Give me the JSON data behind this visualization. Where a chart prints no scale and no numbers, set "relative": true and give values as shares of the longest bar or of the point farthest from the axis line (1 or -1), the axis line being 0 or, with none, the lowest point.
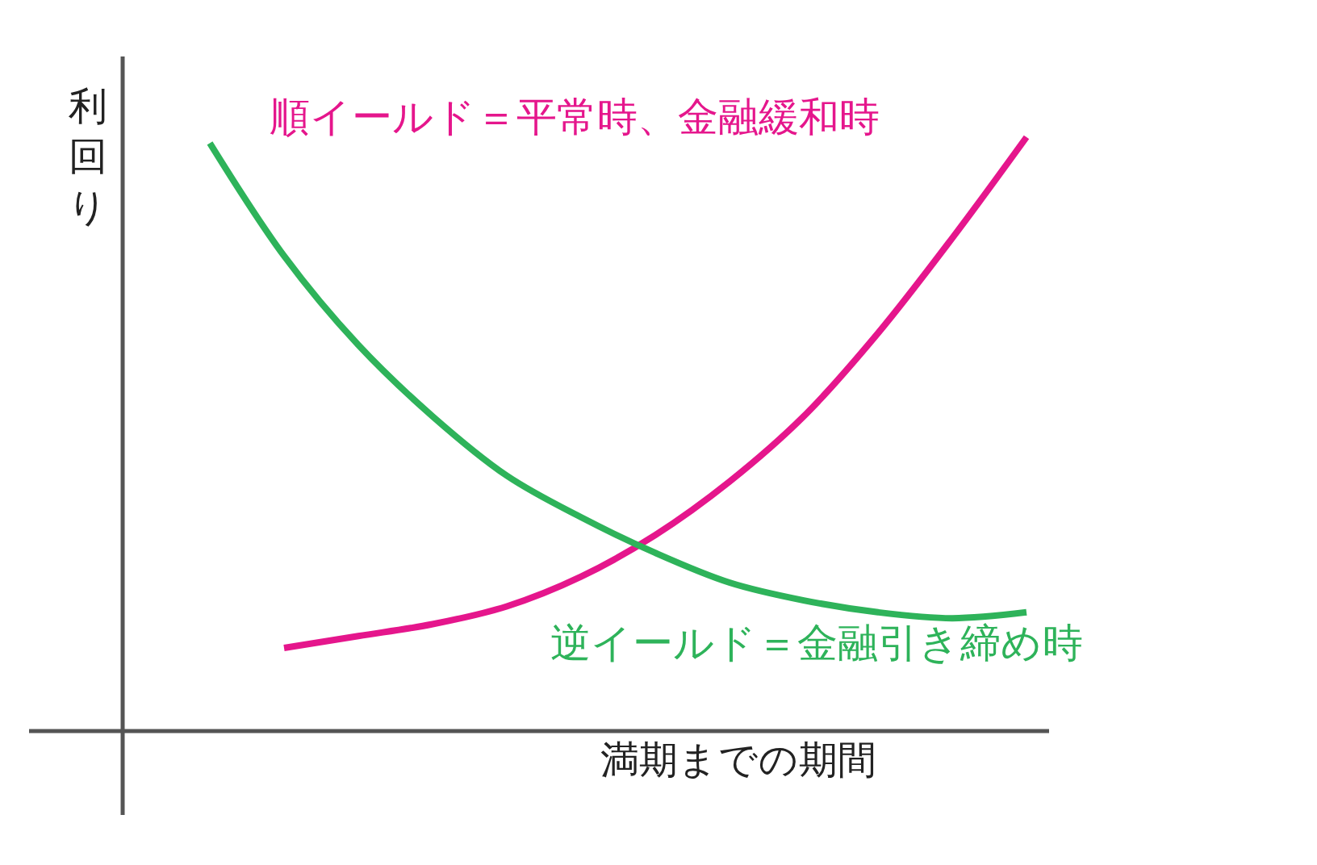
{
  "chart_data": {
    "type": "line",
    "relative": true,
    "ylabel": "利回り",
    "xlabel": "満期までの期間",
    "categories": [
      null,
      null,
      null,
      null,
      null,
      null,
      null,
      null,
      null,
      null,
      null,
      null
    ],
    "series": [
      {
        "name": "順イールド＝平常時、金融緩和時",
        "color": "#e5168c",
        "values": [
          null,
          0.14,
          0.16,
          0.18,
          0.21,
          0.26,
          0.33,
          0.42,
          0.53,
          0.67,
          0.83,
          1.0
        ]
      },
      {
        "name": "逆イールド＝金融引き締め時",
        "color": "#2eb35a",
        "values": [
          0.99,
          0.8,
          0.65,
          0.53,
          0.43,
          0.36,
          0.3,
          0.25,
          0.22,
          0.2,
          0.19,
          0.2
        ]
      }
    ],
    "grid": false,
    "legend": false,
    "marker": "none",
    "line_style": "solid",
    "tick_labels": false
  }
}
